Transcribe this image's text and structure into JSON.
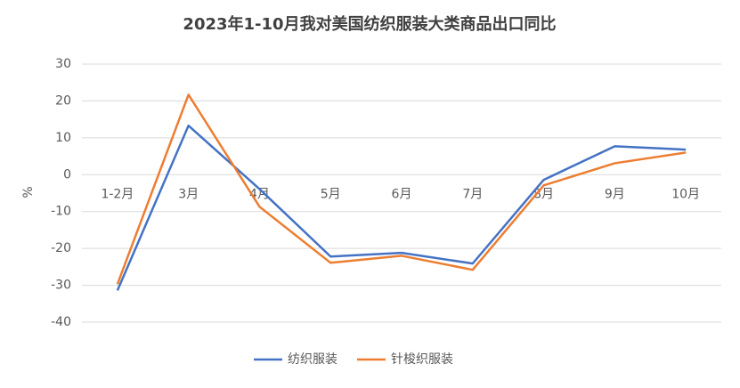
{
  "chart_data": {
    "type": "line",
    "title": "2023年1-10月我对美国纺织服装大类商品出口同比",
    "y_label": "%",
    "categories": [
      "1-2月",
      "3月",
      "4月",
      "5月",
      "6月",
      "7月",
      "8月",
      "9月",
      "10月"
    ],
    "series": [
      {
        "name": "纺织服装",
        "color": "#4472c4",
        "values": [
          -31.4,
          13.3,
          -3.9,
          -22.2,
          -21.2,
          -24.1,
          -1.4,
          7.7,
          6.8
        ]
      },
      {
        "name": "针梭织服装",
        "color": "#ed7d31",
        "values": [
          -29.7,
          21.7,
          -8.7,
          -23.9,
          -22.0,
          -25.8,
          -2.9,
          3.1,
          6.0
        ]
      }
    ],
    "ylim": [
      -40,
      30
    ],
    "yticks": [
      -40,
      -30,
      -20,
      -10,
      0,
      10,
      20,
      30
    ],
    "grid": true,
    "legend": "bottom"
  }
}
